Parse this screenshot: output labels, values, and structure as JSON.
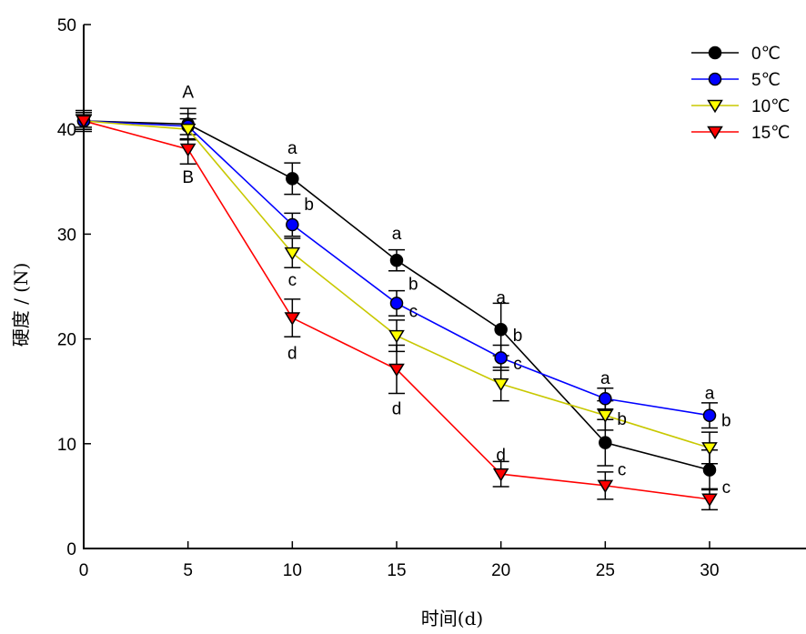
{
  "chart_data": {
    "type": "line",
    "title": "",
    "xlabel": "时间(d)",
    "ylabel": "硬度 / (N)",
    "xlim": [
      0,
      35
    ],
    "ylim": [
      0,
      50
    ],
    "x": [
      0,
      5,
      10,
      15,
      20,
      25,
      30
    ],
    "xticks": [
      "0",
      "5",
      "10",
      "15",
      "20",
      "25",
      "30"
    ],
    "yticks": [
      "0",
      "10",
      "20",
      "30",
      "40",
      "50"
    ],
    "grid": false,
    "legend_position": "top-right",
    "series": [
      {
        "name": "0℃",
        "color": "#000000",
        "marker": "circle",
        "fill": "#000000",
        "values": [
          40.8,
          40.5,
          35.3,
          27.5,
          20.9,
          10.1,
          7.5
        ],
        "errors": [
          1.0,
          1.5,
          1.5,
          1.0,
          2.5,
          2.2,
          1.9
        ]
      },
      {
        "name": "5℃",
        "color": "#0000ff",
        "marker": "circle",
        "fill": "#0000ff",
        "values": [
          40.8,
          40.3,
          30.9,
          23.4,
          18.2,
          14.3,
          12.7
        ],
        "errors": [
          0.8,
          1.2,
          1.1,
          1.2,
          1.2,
          1.0,
          1.2
        ]
      },
      {
        "name": "10℃",
        "color": "#c8c800",
        "marker": "triangle-down",
        "fill": "#ffff00",
        "values": [
          40.8,
          40.0,
          28.2,
          20.3,
          15.7,
          12.7,
          9.6
        ],
        "errors": [
          0.8,
          1.0,
          1.4,
          1.5,
          1.6,
          1.4,
          1.5
        ]
      },
      {
        "name": "15℃",
        "color": "#ff0000",
        "marker": "triangle-down",
        "fill": "#ff0000",
        "values": [
          40.8,
          38.1,
          22.0,
          17.1,
          7.1,
          6.0,
          4.7
        ],
        "errors": [
          0.6,
          1.4,
          1.8,
          2.3,
          1.2,
          1.3,
          1.0
        ]
      }
    ],
    "annotations": [
      {
        "text": "A",
        "x": 5,
        "y": 43.6
      },
      {
        "text": "B",
        "x": 5,
        "y": 35.5
      },
      {
        "text": "a",
        "x": 10,
        "y": 38.3
      },
      {
        "text": "b",
        "x": 10.8,
        "y": 32.9
      },
      {
        "text": "c",
        "x": 10,
        "y": 25.7
      },
      {
        "text": "d",
        "x": 10,
        "y": 18.7
      },
      {
        "text": "a",
        "x": 15,
        "y": 30.1
      },
      {
        "text": "b",
        "x": 15.8,
        "y": 25.3
      },
      {
        "text": "c",
        "x": 15.8,
        "y": 22.7
      },
      {
        "text": "d",
        "x": 15,
        "y": 13.4
      },
      {
        "text": "a",
        "x": 20,
        "y": 24.0
      },
      {
        "text": "b",
        "x": 20.8,
        "y": 20.4
      },
      {
        "text": "c",
        "x": 20.8,
        "y": 17.7
      },
      {
        "text": "d",
        "x": 20,
        "y": 9.0
      },
      {
        "text": "a",
        "x": 25,
        "y": 16.3
      },
      {
        "text": "b",
        "x": 25.8,
        "y": 12.4
      },
      {
        "text": "c",
        "x": 25.8,
        "y": 7.6
      },
      {
        "text": "a",
        "x": 30,
        "y": 14.9
      },
      {
        "text": "b",
        "x": 30.8,
        "y": 12.3
      },
      {
        "text": "c",
        "x": 30.8,
        "y": 5.9
      }
    ]
  }
}
